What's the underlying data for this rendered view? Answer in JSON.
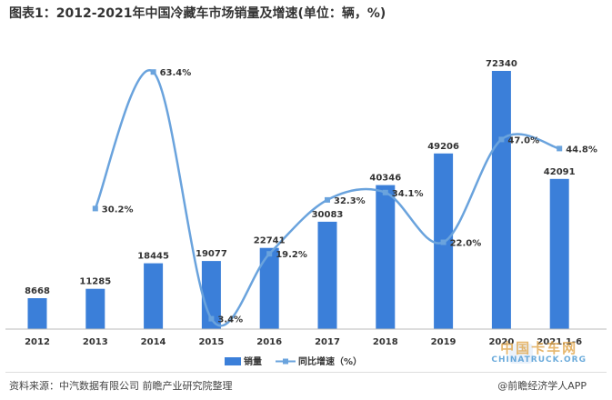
{
  "title": "图表1：2012-2021年中国冷藏车市场销量及增速(单位：辆，%)",
  "source": "资料来源：中汽数据有限公司 前瞻产业研究院整理",
  "brand": "@前瞻经济学人APP",
  "watermark_cn": "中国卡车网",
  "watermark_en": "CHINATRUCK.ORG",
  "colors": {
    "bar": "#3b7fd9",
    "line": "#6aa3dd",
    "axis": "#bbbbbb",
    "text": "#333333"
  },
  "chart_data": {
    "type": "bar",
    "categories": [
      "2012",
      "2013",
      "2014",
      "2015",
      "2016",
      "2017",
      "2018",
      "2019",
      "2020",
      "2021.1-6"
    ],
    "series": [
      {
        "name": "销量",
        "type": "bar",
        "values": [
          8668,
          11285,
          18445,
          19077,
          22741,
          30083,
          40346,
          49206,
          72340,
          42091
        ]
      },
      {
        "name": "同比增速（%）",
        "type": "line",
        "smooth": true,
        "values": [
          null,
          30.2,
          63.4,
          3.4,
          19.2,
          32.3,
          34.1,
          22.0,
          47.0,
          44.8
        ],
        "labels": [
          "",
          "30.2%",
          "63.4%",
          "3.4%",
          "19.2%",
          "32.3%",
          "34.1%",
          "22.0%",
          "47.0%",
          "44.8%"
        ]
      }
    ],
    "legend_position": "bottom-center",
    "grid": false
  }
}
